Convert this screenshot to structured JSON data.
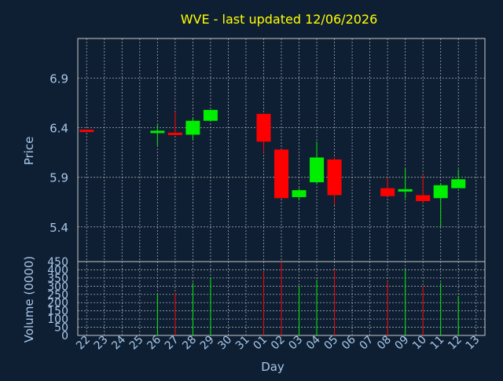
{
  "chart_data": {
    "type": "candlestick",
    "title": "WVE - last updated 12/06/2026",
    "xlabel": "Day",
    "ylabel": "Price",
    "volume_label": "Volume (0000)",
    "grid": true,
    "price_ylim": [
      5.05,
      7.3
    ],
    "price_ticks": [
      "5.4",
      "5.9",
      "6.4",
      "6.9"
    ],
    "volume_ylim": [
      0,
      450
    ],
    "volume_ticks": [
      "0",
      "50",
      "100",
      "150",
      "200",
      "250",
      "300",
      "350",
      "400",
      "450"
    ],
    "x_labels": [
      "22",
      "23",
      "24",
      "25",
      "26",
      "27",
      "28",
      "29",
      "30",
      "31",
      "01",
      "02",
      "03",
      "04",
      "05",
      "06",
      "07",
      "08",
      "09",
      "10",
      "11",
      "12",
      "13"
    ],
    "candles": [
      {
        "x": 0,
        "open": 6.38,
        "close": 6.36,
        "high": 6.38,
        "low": 6.36,
        "volume": 0
      },
      {
        "x": 4,
        "open": 6.35,
        "close": 6.37,
        "high": 6.43,
        "low": 6.22,
        "volume": 250
      },
      {
        "x": 5,
        "open": 6.35,
        "close": 6.33,
        "high": 6.56,
        "low": 6.33,
        "volume": 260
      },
      {
        "x": 6,
        "open": 6.33,
        "close": 6.47,
        "high": 6.5,
        "low": 6.28,
        "volume": 320
      },
      {
        "x": 7,
        "open": 6.47,
        "close": 6.58,
        "high": 6.58,
        "low": 6.46,
        "volume": 350
      },
      {
        "x": 10,
        "open": 6.54,
        "close": 6.26,
        "high": 6.54,
        "low": 6.15,
        "volume": 390
      },
      {
        "x": 11,
        "open": 6.18,
        "close": 5.69,
        "high": 6.18,
        "low": 5.69,
        "volume": 450
      },
      {
        "x": 12,
        "open": 5.7,
        "close": 5.77,
        "high": 5.79,
        "low": 5.67,
        "volume": 300
      },
      {
        "x": 13,
        "open": 5.85,
        "close": 6.1,
        "high": 6.26,
        "low": 5.84,
        "volume": 340
      },
      {
        "x": 14,
        "open": 6.08,
        "close": 5.72,
        "high": 6.1,
        "low": 5.62,
        "volume": 400
      },
      {
        "x": 17,
        "open": 5.79,
        "close": 5.71,
        "high": 5.9,
        "low": 5.71,
        "volume": 330
      },
      {
        "x": 18,
        "open": 5.76,
        "close": 5.78,
        "high": 5.99,
        "low": 5.69,
        "volume": 400
      },
      {
        "x": 19,
        "open": 5.72,
        "close": 5.66,
        "high": 5.93,
        "low": 5.64,
        "volume": 300
      },
      {
        "x": 20,
        "open": 5.69,
        "close": 5.82,
        "high": 5.84,
        "low": 5.4,
        "volume": 320
      },
      {
        "x": 21,
        "open": 5.79,
        "close": 5.88,
        "high": 5.98,
        "low": 5.79,
        "volume": 240
      }
    ],
    "colors": {
      "background": "#0f1f33",
      "up": "#00ee00",
      "down": "#ff0000",
      "grid": "#c8c8c8",
      "axis_text": "#a8c8e8",
      "title": "#ffff00"
    }
  }
}
